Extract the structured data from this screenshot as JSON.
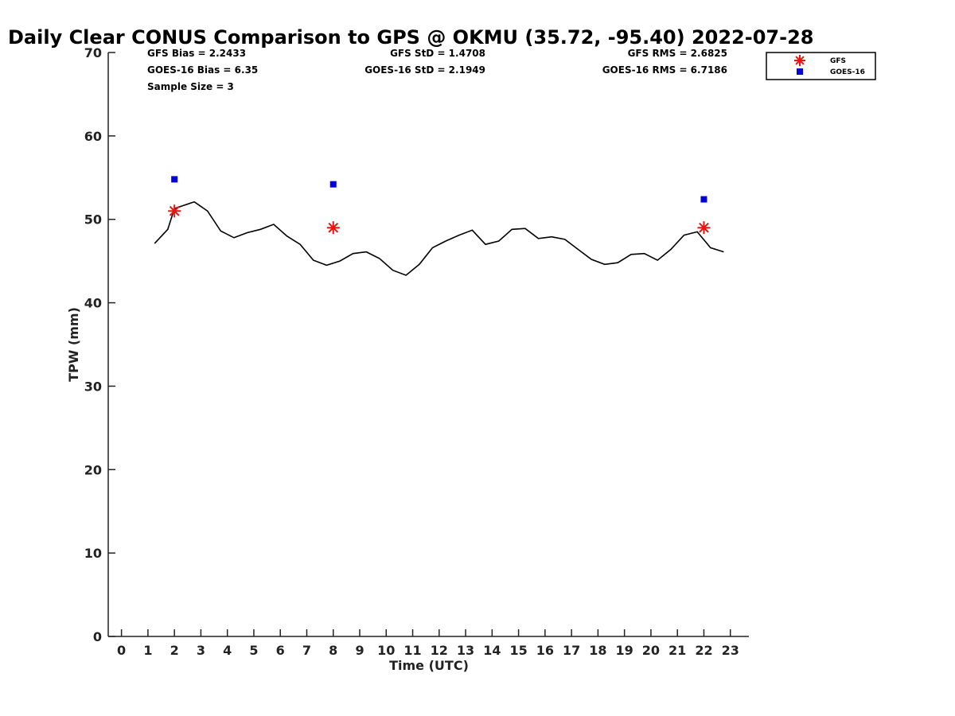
{
  "chart_data": {
    "type": "scatter",
    "title": "Daily Clear CONUS Comparison to GPS @ OKMU (35.72, -95.40) 2022-07-28",
    "xlabel": "Time (UTC)",
    "ylabel": "TPW (mm)",
    "xlim": [
      -0.5,
      23.7
    ],
    "ylim": [
      0,
      70
    ],
    "x_ticks": [
      0,
      1,
      2,
      3,
      4,
      5,
      6,
      7,
      8,
      9,
      10,
      11,
      12,
      13,
      14,
      15,
      16,
      17,
      18,
      19,
      20,
      21,
      22,
      23
    ],
    "y_ticks": [
      0,
      10,
      20,
      30,
      40,
      50,
      60,
      70
    ],
    "grid": false,
    "legend_placement": "top-right",
    "stats": {
      "gfs_bias": "GFS Bias = 2.2433",
      "goes_bias": "GOES-16 Bias = 6.35",
      "sample_size": "Sample Size = 3",
      "gfs_std": "GFS StD = 1.4708",
      "goes_std": "GOES-16 StD = 2.1949",
      "gfs_rms": "GFS RMS = 2.6825",
      "goes_rms": "GOES-16 RMS = 6.7186"
    },
    "series": [
      {
        "name": "GFS",
        "kind": "scatter",
        "marker": "asterisk",
        "color": "#ee1111",
        "x": [
          2.0,
          8.0,
          22.0
        ],
        "y": [
          51.0,
          49.0,
          49.0
        ]
      },
      {
        "name": "GOES-16",
        "kind": "scatter",
        "marker": "square",
        "color": "#0000dd",
        "x": [
          2.0,
          8.0,
          22.0
        ],
        "y": [
          54.8,
          54.2,
          52.4
        ]
      },
      {
        "kind": "line",
        "color": "#000000",
        "x": [
          1.25,
          1.75,
          2.0,
          2.75,
          3.25,
          3.75,
          4.25,
          4.75,
          5.25,
          5.75,
          6.25,
          6.75,
          7.25,
          7.75,
          8.25,
          8.75,
          9.25,
          9.75,
          10.25,
          10.75,
          11.25,
          11.75,
          12.25,
          12.75,
          13.25,
          13.75,
          14.25,
          14.75,
          15.25,
          15.75,
          16.25,
          16.75,
          17.25,
          17.75,
          18.25,
          18.75,
          19.25,
          19.75,
          20.25,
          20.75,
          21.25,
          21.75,
          22.25,
          22.75
        ],
        "y": [
          47.1,
          48.8,
          51.3,
          52.1,
          51.0,
          48.6,
          47.8,
          48.4,
          48.8,
          49.4,
          48.0,
          47.0,
          45.1,
          44.5,
          45.0,
          45.9,
          46.1,
          45.3,
          43.9,
          43.3,
          44.6,
          46.6,
          47.4,
          48.1,
          48.7,
          47.0,
          47.4,
          48.8,
          48.9,
          47.7,
          47.9,
          47.6,
          46.4,
          45.2,
          44.6,
          44.8,
          45.8,
          45.9,
          45.1,
          46.4,
          48.1,
          48.5,
          46.6,
          46.1
        ]
      }
    ]
  }
}
